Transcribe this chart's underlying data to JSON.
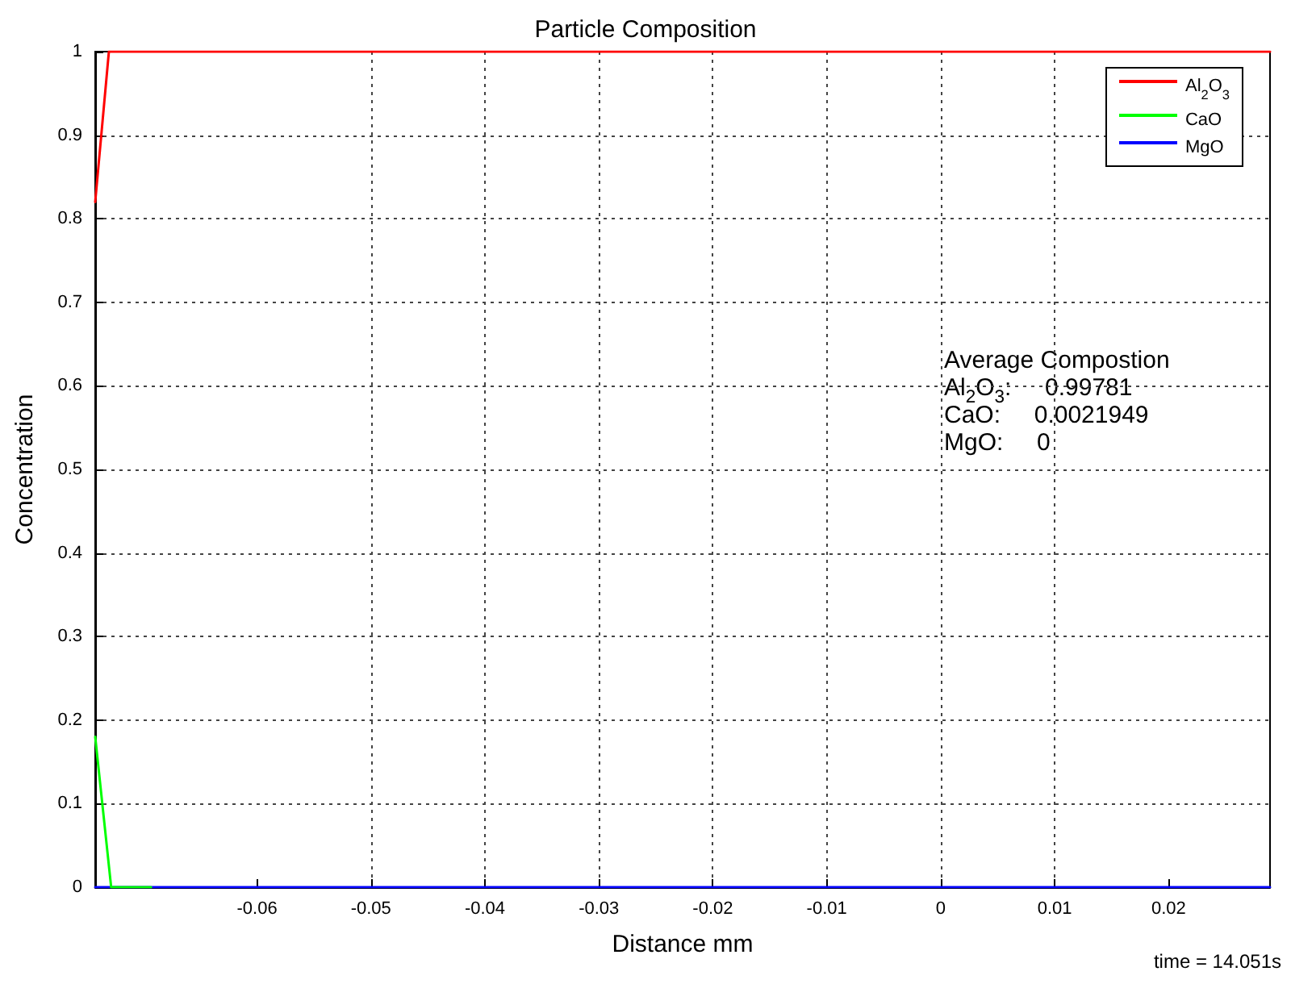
{
  "chart_data": {
    "type": "line",
    "title": "Particle Composition",
    "xlabel": "Distance mm",
    "ylabel": "Concentration",
    "series": [
      {
        "name": "Al$_{2}$O$_{3}$",
        "color": "#ff0000",
        "x": [
          -0.0742,
          -0.073,
          0.0289
        ],
        "values": [
          0.82,
          1,
          1
        ]
      },
      {
        "name": "CaO",
        "color": "#00ff00",
        "x": [
          -0.0742,
          -0.0728,
          -0.0693
        ],
        "values": [
          0.18,
          0,
          0
        ]
      },
      {
        "name": "MgO",
        "color": "#0000ff",
        "x": [
          -0.0742,
          0.0289
        ],
        "values": [
          0,
          0
        ]
      }
    ],
    "xlim": [
      -0.0742,
      0.0289
    ],
    "xticks": [
      -0.06,
      -0.05,
      -0.04,
      -0.03,
      -0.02,
      -0.01,
      0,
      0.01,
      0.02
    ],
    "ylim": [
      0,
      1
    ],
    "yticks": [
      0,
      0.1,
      0.2,
      0.3,
      0.4,
      0.5,
      0.6,
      0.7,
      0.8,
      0.9,
      1
    ],
    "annotations": [
      "Average Compostion",
      "Al$_{2}$O$_{3}$:     0.99781",
      "CaO:     0.0021949",
      "MgO:     0",
      "time = 14.051s"
    ],
    "grid": true,
    "legend": "top right",
    "marker": "none",
    "line_style": "solid"
  }
}
